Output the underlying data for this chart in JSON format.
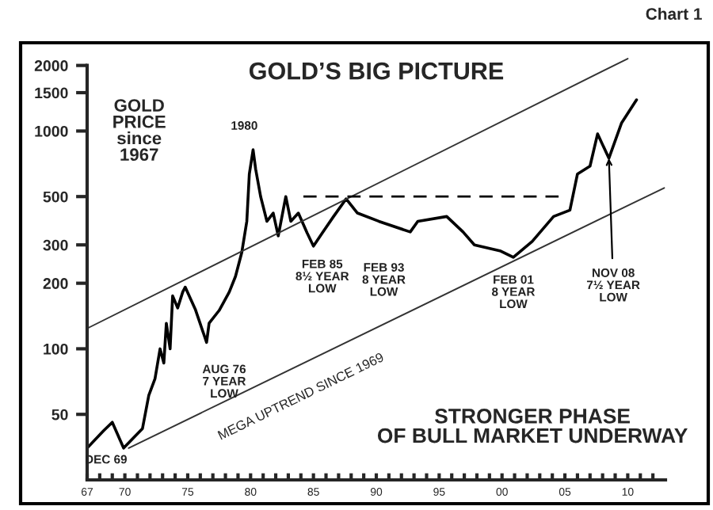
{
  "chart_data": {
    "type": "line",
    "title": "GOLD’S BIG PICTURE",
    "log": "y",
    "grid": false,
    "line_style": "solid",
    "xlim": [
      1967,
      2013
    ],
    "ylim": [
      25,
      2500
    ],
    "xticks": [
      {
        "value": 1967,
        "label": "67"
      },
      {
        "value": 1968,
        "label": null
      },
      {
        "value": 1969,
        "label": null
      },
      {
        "value": 1970,
        "label": "70"
      },
      {
        "value": 1971,
        "label": null
      },
      {
        "value": 1972,
        "label": null
      },
      {
        "value": 1973,
        "label": null
      },
      {
        "value": 1974,
        "label": null
      },
      {
        "value": 1975,
        "label": "75"
      },
      {
        "value": 1976,
        "label": null
      },
      {
        "value": 1977,
        "label": null
      },
      {
        "value": 1978,
        "label": null
      },
      {
        "value": 1979,
        "label": null
      },
      {
        "value": 1980,
        "label": "80"
      },
      {
        "value": 1981,
        "label": null
      },
      {
        "value": 1982,
        "label": null
      },
      {
        "value": 1983,
        "label": null
      },
      {
        "value": 1984,
        "label": null
      },
      {
        "value": 1985,
        "label": "85"
      },
      {
        "value": 1986,
        "label": null
      },
      {
        "value": 1987,
        "label": null
      },
      {
        "value": 1988,
        "label": null
      },
      {
        "value": 1989,
        "label": null
      },
      {
        "value": 1990,
        "label": "90"
      },
      {
        "value": 1991,
        "label": null
      },
      {
        "value": 1992,
        "label": null
      },
      {
        "value": 1993,
        "label": null
      },
      {
        "value": 1994,
        "label": null
      },
      {
        "value": 1995,
        "label": "95"
      },
      {
        "value": 1996,
        "label": null
      },
      {
        "value": 1997,
        "label": null
      },
      {
        "value": 1998,
        "label": null
      },
      {
        "value": 1999,
        "label": null
      },
      {
        "value": 2000,
        "label": "00"
      },
      {
        "value": 2001,
        "label": null
      },
      {
        "value": 2002,
        "label": null
      },
      {
        "value": 2003,
        "label": null
      },
      {
        "value": 2004,
        "label": null
      },
      {
        "value": 2005,
        "label": "05"
      },
      {
        "value": 2006,
        "label": null
      },
      {
        "value": 2007,
        "label": null
      },
      {
        "value": 2008,
        "label": null
      },
      {
        "value": 2009,
        "label": null
      },
      {
        "value": 2010,
        "label": "10"
      },
      {
        "value": 2011,
        "label": null
      },
      {
        "value": 2012,
        "label": null
      }
    ],
    "yticks": [
      50,
      100,
      200,
      300,
      500,
      1000,
      1500,
      2000
    ],
    "series": [
      {
        "color": "#000000",
        "x": [
          1967.0,
          1968.3,
          1969.0,
          1969.9,
          1971.4,
          1971.9,
          1972.4,
          1972.8,
          1973.1,
          1973.3,
          1973.6,
          1973.8,
          1974.2,
          1974.6,
          1974.8,
          1975.6,
          1976.5,
          1976.7,
          1977.5,
          1978.3,
          1978.8,
          1979.3,
          1979.7,
          1979.9,
          1980.2,
          1980.4,
          1980.8,
          1981.3,
          1981.8,
          1982.2,
          1982.8,
          1983.2,
          1983.8,
          1984.5,
          1985.0,
          1985.7,
          1986.6,
          1987.6,
          1988.5,
          1990.2,
          1992.7,
          1993.3,
          1995.6,
          1996.9,
          1997.8,
          1999.9,
          2000.9,
          2002.4,
          2004.1,
          2005.4,
          2006.0,
          2007.0,
          2007.6,
          2008.5,
          2009.5,
          2010.7
        ],
        "values": [
          35,
          42,
          46,
          35,
          43,
          61,
          73,
          100,
          86,
          131,
          100,
          175,
          154,
          182,
          192,
          152,
          107,
          131,
          150,
          182,
          215,
          277,
          385,
          635,
          820,
          670,
          500,
          385,
          420,
          330,
          500,
          385,
          420,
          340,
          296,
          340,
          405,
          488,
          420,
          385,
          344,
          385,
          405,
          344,
          300,
          281,
          263,
          311,
          405,
          433,
          635,
          690,
          970,
          750,
          1086,
          1390
        ]
      },
      {
        "color": "#333333",
        "x": [
          1967.0,
          2010.0
        ],
        "values": [
          124,
          2150
        ]
      },
      {
        "color": "#333333",
        "x": [
          1970.3,
          2012.9
        ],
        "values": [
          35,
          548
        ]
      },
      {
        "color": "#000000",
        "line_style": "dashed",
        "x": [
          1984.2,
          2004.5
        ],
        "values": [
          500,
          500
        ]
      }
    ],
    "annotations": [
      {
        "text": "1980",
        "x": 1980.2,
        "y": 820
      },
      {
        "text": "AUG 76\n7 YEAR\nLOW",
        "x": 1976.5,
        "y": 107
      },
      {
        "text": "FEB 85\n8½ YEAR\nLOW",
        "x": 1985.0,
        "y": 296
      },
      {
        "text": "FEB 93\n8 YEAR\nLOW",
        "x": 1992.7,
        "y": 344
      },
      {
        "text": "FEB 01\n8 YEAR\nLOW",
        "x": 2000.9,
        "y": 263
      },
      {
        "text": "DEC 69",
        "x": 1969.9,
        "y": 35
      },
      {
        "text": "NOV 08\n7½ YEAR\nLOW",
        "x": 2008.5,
        "y": 750
      },
      "MEGA UPTREND SINCE 1969",
      "GOLD\nPRICE\nsince\n1967",
      "STRONGER PHASE\nOF BULL MARKET UNDERWAY",
      "Chart 1"
    ]
  }
}
